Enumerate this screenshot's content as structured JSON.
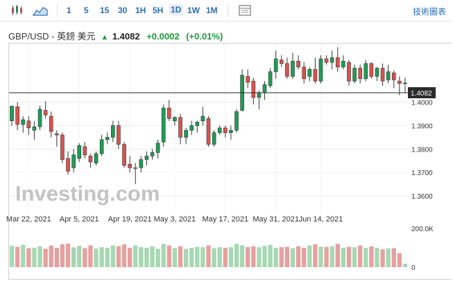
{
  "toolbar": {
    "timeframes": [
      "1",
      "5",
      "15",
      "30",
      "1H",
      "5H",
      "1D",
      "1W",
      "1M"
    ],
    "active_timeframe": "1D",
    "tech_chart_label": "技術圖表"
  },
  "quote": {
    "pair": "GBP/USD - 英鎊 美元",
    "last": "1.4082",
    "change": "+0.0002",
    "change_pct": "(+0.01%)"
  },
  "watermark": "Investing.com",
  "colors": {
    "up": "#1f9d55",
    "down": "#d9534f",
    "up_vol": "#a6d8b3",
    "down_vol": "#e6a0a0",
    "accent": "#2a6cb8"
  },
  "chart_data": {
    "type": "candlestick",
    "price_ticks": [
      "1.3600",
      "1.3700",
      "1.3800",
      "1.3900",
      "1.4000"
    ],
    "price_range": [
      1.3535,
      1.425
    ],
    "last_price_label": "1.4082",
    "date_labels": [
      "Mar 22, 2021",
      "Apr 5, 2021",
      "Apr 19, 2021",
      "May 3, 2021",
      "May 17, 2021",
      "May 31, 2021",
      "Jun 14, 2021"
    ],
    "volume_ticks": [
      "200.0K",
      "0"
    ],
    "volume_max": 200000,
    "ohlc": [
      [
        1.392,
        1.3985,
        1.39,
        1.3983
      ],
      [
        1.398,
        1.4,
        1.388,
        1.3905
      ],
      [
        1.3905,
        1.394,
        1.387,
        1.3925
      ],
      [
        1.392,
        1.394,
        1.386,
        1.389
      ],
      [
        1.388,
        1.392,
        1.384,
        1.3895
      ],
      [
        1.3895,
        1.3985,
        1.388,
        1.397
      ],
      [
        1.3965,
        1.4005,
        1.393,
        1.3945
      ],
      [
        1.394,
        1.396,
        1.385,
        1.3875
      ],
      [
        1.3865,
        1.388,
        1.381,
        1.386
      ],
      [
        1.386,
        1.387,
        1.374,
        1.3755
      ],
      [
        1.376,
        1.379,
        1.369,
        1.3705
      ],
      [
        1.372,
        1.38,
        1.37,
        1.3775
      ],
      [
        1.376,
        1.3825,
        1.3745,
        1.3815
      ],
      [
        1.381,
        1.383,
        1.376,
        1.3775
      ],
      [
        1.377,
        1.378,
        1.372,
        1.3745
      ],
      [
        1.374,
        1.379,
        1.373,
        1.378
      ],
      [
        1.378,
        1.386,
        1.377,
        1.384
      ],
      [
        1.384,
        1.387,
        1.382,
        1.385
      ],
      [
        1.385,
        1.392,
        1.383,
        1.39
      ],
      [
        1.39,
        1.392,
        1.38,
        1.382
      ],
      [
        1.382,
        1.383,
        1.372,
        1.373
      ],
      [
        1.3735,
        1.377,
        1.37,
        1.372
      ],
      [
        1.372,
        1.374,
        1.365,
        1.372
      ],
      [
        1.372,
        1.377,
        1.37,
        1.3755
      ],
      [
        1.3755,
        1.379,
        1.373,
        1.377
      ],
      [
        1.377,
        1.38,
        1.3755,
        1.3785
      ],
      [
        1.3785,
        1.384,
        1.376,
        1.3825
      ],
      [
        1.383,
        1.399,
        1.381,
        1.3975
      ],
      [
        1.3975,
        1.401,
        1.392,
        1.393
      ],
      [
        1.392,
        1.394,
        1.39,
        1.3935
      ],
      [
        1.3935,
        1.395,
        1.382,
        1.385
      ],
      [
        1.385,
        1.389,
        1.382,
        1.388
      ],
      [
        1.388,
        1.392,
        1.386,
        1.39
      ],
      [
        1.39,
        1.392,
        1.387,
        1.3915
      ],
      [
        1.392,
        1.398,
        1.39,
        1.394
      ],
      [
        1.393,
        1.394,
        1.381,
        1.382
      ],
      [
        1.382,
        1.388,
        1.381,
        1.387
      ],
      [
        1.387,
        1.39,
        1.386,
        1.389
      ],
      [
        1.389,
        1.39,
        1.385,
        1.387
      ],
      [
        1.387,
        1.39,
        1.384,
        1.388
      ],
      [
        1.388,
        1.397,
        1.387,
        1.396
      ],
      [
        1.3965,
        1.414,
        1.396,
        1.4115
      ],
      [
        1.411,
        1.414,
        1.406,
        1.4085
      ],
      [
        1.409,
        1.4105,
        1.399,
        1.402
      ],
      [
        1.402,
        1.405,
        1.397,
        1.404
      ],
      [
        1.404,
        1.409,
        1.401,
        1.4075
      ],
      [
        1.407,
        1.4145,
        1.406,
        1.413
      ],
      [
        1.413,
        1.422,
        1.41,
        1.4185
      ],
      [
        1.418,
        1.42,
        1.415,
        1.4165
      ],
      [
        1.4165,
        1.419,
        1.41,
        1.411
      ],
      [
        1.411,
        1.421,
        1.41,
        1.4175
      ],
      [
        1.4175,
        1.42,
        1.414,
        1.415
      ],
      [
        1.415,
        1.417,
        1.408,
        1.41
      ],
      [
        1.411,
        1.415,
        1.409,
        1.414
      ],
      [
        1.414,
        1.419,
        1.408,
        1.409
      ],
      [
        1.409,
        1.42,
        1.408,
        1.4185
      ],
      [
        1.4185,
        1.42,
        1.416,
        1.417
      ],
      [
        1.417,
        1.422,
        1.414,
        1.419
      ],
      [
        1.419,
        1.4235,
        1.413,
        1.415
      ],
      [
        1.415,
        1.42,
        1.414,
        1.4175
      ],
      [
        1.417,
        1.418,
        1.407,
        1.409
      ],
      [
        1.409,
        1.416,
        1.408,
        1.4145
      ],
      [
        1.4145,
        1.416,
        1.408,
        1.41
      ],
      [
        1.41,
        1.418,
        1.409,
        1.4165
      ],
      [
        1.4165,
        1.417,
        1.41,
        1.411
      ],
      [
        1.411,
        1.415,
        1.409,
        1.4145
      ],
      [
        1.4145,
        1.4165,
        1.407,
        1.409
      ],
      [
        1.4095,
        1.416,
        1.408,
        1.413
      ],
      [
        1.4125,
        1.4135,
        1.406,
        1.4095
      ],
      [
        1.409,
        1.411,
        1.403,
        1.408
      ],
      [
        1.408,
        1.4105,
        1.404,
        1.4082
      ]
    ],
    "volume": [
      110000,
      105000,
      115000,
      98000,
      100000,
      108000,
      95000,
      112000,
      100000,
      118000,
      122000,
      102000,
      110000,
      98000,
      112000,
      96000,
      103000,
      100000,
      112000,
      108000,
      118000,
      100000,
      112000,
      103000,
      100000,
      108000,
      95000,
      120000,
      112000,
      98000,
      108000,
      95000,
      100000,
      105000,
      103000,
      112000,
      98000,
      103000,
      100000,
      103000,
      120000,
      112000,
      104000,
      108000,
      103000,
      110000,
      115000,
      100000,
      103000,
      105000,
      98000,
      108000,
      100000,
      112000,
      118000,
      106000,
      104000,
      108000,
      120000,
      100000,
      105000,
      103000,
      112000,
      100000,
      107000,
      100000,
      92000,
      97000,
      98000,
      72000,
      18000
    ]
  }
}
